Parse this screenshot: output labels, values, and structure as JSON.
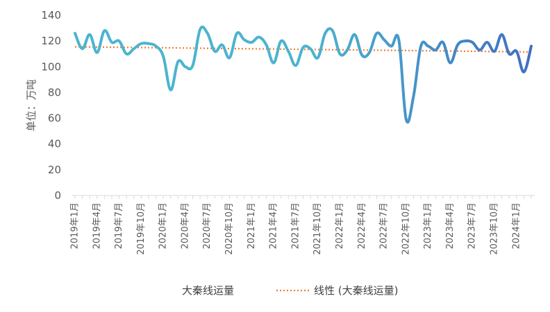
{
  "chart_data": {
    "type": "line",
    "ylabel": "单位：万吨",
    "ylim": [
      0,
      140
    ],
    "yticks": [
      0,
      20,
      40,
      60,
      80,
      100,
      120,
      140
    ],
    "x_tick_labels": [
      "2019年1月",
      "2019年4月",
      "2019年7月",
      "2019年10月",
      "2020年1月",
      "2020年4月",
      "2020年7月",
      "2020年10月",
      "2021年1月",
      "2021年4月",
      "2021年7月",
      "2021年10月",
      "2022年1月",
      "2022年4月",
      "2022年7月",
      "2022年10月",
      "2023年1月",
      "2023年4月",
      "2023年7月",
      "2023年10月",
      "2024年1月"
    ],
    "start": "2019年1月",
    "series": [
      {
        "name": "大秦线运量",
        "kind": "line",
        "color_start": "#4BB4CF",
        "color_end": "#3F6FC3",
        "values": [
          126,
          114,
          125,
          111,
          128,
          119,
          120,
          110,
          114,
          118,
          118,
          116,
          108,
          82,
          104,
          100,
          101,
          129,
          126,
          112,
          117,
          107,
          126,
          121,
          119,
          123,
          117,
          103,
          120,
          112,
          101,
          115,
          114,
          107,
          126,
          128,
          110,
          113,
          125,
          109,
          111,
          126,
          121,
          116,
          121,
          59,
          77,
          116,
          116,
          113,
          119,
          103,
          117,
          120,
          119,
          113,
          119,
          112,
          125,
          110,
          112,
          96,
          116
        ]
      },
      {
        "name": "线性 (大秦线运量)",
        "kind": "trend",
        "color": "#ED7D31",
        "values": [
          115.5,
          111.5
        ]
      }
    ],
    "legend": {
      "position": "bottom",
      "items": [
        "大秦线运量",
        "线性 (大秦线运量)"
      ]
    },
    "grid": false
  }
}
